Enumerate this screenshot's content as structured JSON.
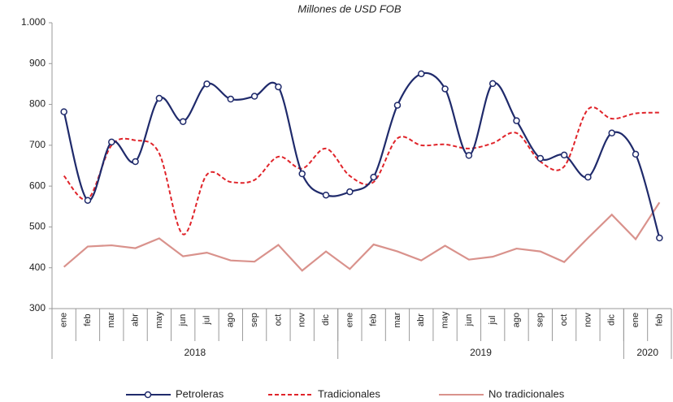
{
  "chart_data": {
    "type": "line",
    "title": "Millones de USD FOB",
    "categories": [
      "ene",
      "feb",
      "mar",
      "abr",
      "may",
      "jun",
      "jul",
      "ago",
      "sep",
      "oct",
      "nov",
      "dic",
      "ene",
      "feb",
      "mar",
      "abr",
      "may",
      "jun",
      "jul",
      "ago",
      "sep",
      "oct",
      "nov",
      "dic",
      "ene",
      "feb"
    ],
    "year_groups": [
      {
        "name": "2018",
        "span": 12
      },
      {
        "name": "2019",
        "span": 12
      },
      {
        "name": "2020",
        "span": 2
      }
    ],
    "series": [
      {
        "name": "Petroleras",
        "color": "#1f2a6b",
        "style": "solid",
        "smooth": true,
        "markers": true,
        "values": [
          782,
          565,
          708,
          660,
          815,
          758,
          850,
          813,
          820,
          843,
          630,
          578,
          586,
          622,
          798,
          875,
          838,
          675,
          851,
          760,
          668,
          676,
          622,
          730,
          678,
          473
        ]
      },
      {
        "name": "Tradicionales",
        "color": "#e0242a",
        "style": "dashed",
        "smooth": true,
        "markers": false,
        "values": [
          625,
          568,
          700,
          712,
          680,
          482,
          628,
          610,
          615,
          672,
          643,
          692,
          625,
          610,
          717,
          700,
          702,
          692,
          705,
          730,
          660,
          648,
          788,
          765,
          778,
          780
        ]
      },
      {
        "name": "No tradicionales",
        "color": "#d9928c",
        "style": "solid",
        "smooth": false,
        "markers": false,
        "values": [
          402,
          452,
          455,
          448,
          472,
          428,
          437,
          418,
          415,
          456,
          393,
          440,
          397,
          457,
          440,
          418,
          454,
          420,
          427,
          447,
          440,
          414,
          473,
          530,
          470,
          560
        ]
      }
    ],
    "ylim": [
      300,
      1000
    ],
    "yticks": [
      300,
      400,
      500,
      600,
      700,
      800,
      900,
      {
        "value": 1000,
        "label": "1.000"
      }
    ],
    "grid": false,
    "legend": "bottom"
  }
}
